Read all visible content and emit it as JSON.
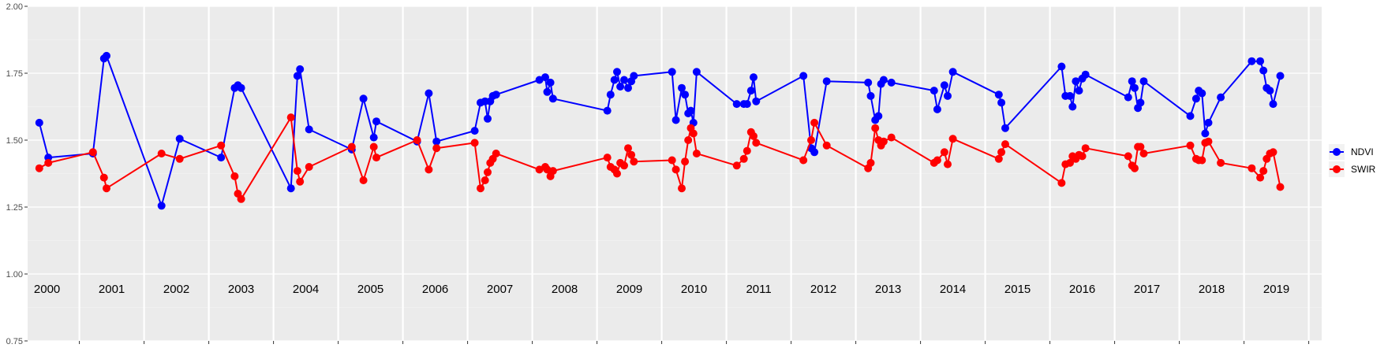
{
  "chart_data": {
    "type": "line",
    "ylim": [
      0.75,
      2.0
    ],
    "xlim": [
      1999.85,
      2019.85
    ],
    "y_ticks": [
      "0.75",
      "1.00",
      "1.25",
      "1.50",
      "1.75",
      "2.00"
    ],
    "y_tick_values": [
      0.75,
      1.0,
      1.25,
      1.5,
      1.75,
      2.0
    ],
    "year_labels": [
      "2000",
      "2001",
      "2002",
      "2003",
      "2004",
      "2005",
      "2006",
      "2007",
      "2008",
      "2009",
      "2010",
      "2011",
      "2012",
      "2013",
      "2014",
      "2015",
      "2016",
      "2017",
      "2018",
      "2019"
    ],
    "grid": true,
    "legend_position": "right",
    "series": [
      {
        "name": "NDVI",
        "color": "#0000ff",
        "points": [
          [
            2000.03,
            1.565
          ],
          [
            2000.17,
            1.435
          ],
          [
            2000.86,
            1.45
          ],
          [
            2001.03,
            1.805
          ],
          [
            2001.07,
            1.815
          ],
          [
            2001.92,
            1.255
          ],
          [
            2002.2,
            1.505
          ],
          [
            2002.84,
            1.435
          ],
          [
            2003.05,
            1.695
          ],
          [
            2003.1,
            1.705
          ],
          [
            2003.15,
            1.695
          ],
          [
            2003.92,
            1.32
          ],
          [
            2004.02,
            1.74
          ],
          [
            2004.06,
            1.765
          ],
          [
            2004.2,
            1.54
          ],
          [
            2004.86,
            1.465
          ],
          [
            2005.04,
            1.655
          ],
          [
            2005.2,
            1.51
          ],
          [
            2005.24,
            1.57
          ],
          [
            2005.87,
            1.495
          ],
          [
            2006.05,
            1.675
          ],
          [
            2006.17,
            1.495
          ],
          [
            2006.76,
            1.535
          ],
          [
            2006.85,
            1.64
          ],
          [
            2006.92,
            1.645
          ],
          [
            2006.96,
            1.58
          ],
          [
            2007.0,
            1.645
          ],
          [
            2007.04,
            1.665
          ],
          [
            2007.09,
            1.67
          ],
          [
            2007.76,
            1.725
          ],
          [
            2007.85,
            1.735
          ],
          [
            2007.88,
            1.68
          ],
          [
            2007.93,
            1.715
          ],
          [
            2007.97,
            1.655
          ],
          [
            2008.81,
            1.61
          ],
          [
            2008.86,
            1.67
          ],
          [
            2008.92,
            1.725
          ],
          [
            2008.96,
            1.755
          ],
          [
            2009.01,
            1.7
          ],
          [
            2009.07,
            1.725
          ],
          [
            2009.13,
            1.695
          ],
          [
            2009.18,
            1.72
          ],
          [
            2009.22,
            1.74
          ],
          [
            2009.81,
            1.755
          ],
          [
            2009.87,
            1.575
          ],
          [
            2009.96,
            1.695
          ],
          [
            2010.01,
            1.67
          ],
          [
            2010.06,
            1.6
          ],
          [
            2010.1,
            1.61
          ],
          [
            2010.14,
            1.565
          ],
          [
            2010.19,
            1.755
          ],
          [
            2010.81,
            1.635
          ],
          [
            2010.92,
            1.635
          ],
          [
            2010.97,
            1.635
          ],
          [
            2011.03,
            1.685
          ],
          [
            2011.07,
            1.735
          ],
          [
            2011.11,
            1.645
          ],
          [
            2011.84,
            1.74
          ],
          [
            2011.96,
            1.47
          ],
          [
            2012.01,
            1.455
          ],
          [
            2012.2,
            1.72
          ],
          [
            2012.84,
            1.715
          ],
          [
            2012.88,
            1.665
          ],
          [
            2012.95,
            1.575
          ],
          [
            2013.0,
            1.59
          ],
          [
            2013.04,
            1.71
          ],
          [
            2013.08,
            1.725
          ],
          [
            2013.2,
            1.715
          ],
          [
            2013.86,
            1.685
          ],
          [
            2013.91,
            1.615
          ],
          [
            2014.02,
            1.705
          ],
          [
            2014.07,
            1.665
          ],
          [
            2014.15,
            1.755
          ],
          [
            2014.86,
            1.67
          ],
          [
            2014.9,
            1.64
          ],
          [
            2014.96,
            1.545
          ],
          [
            2015.83,
            1.775
          ],
          [
            2015.89,
            1.665
          ],
          [
            2015.96,
            1.665
          ],
          [
            2016.0,
            1.625
          ],
          [
            2016.05,
            1.72
          ],
          [
            2016.1,
            1.685
          ],
          [
            2016.15,
            1.73
          ],
          [
            2016.2,
            1.745
          ],
          [
            2016.86,
            1.66
          ],
          [
            2016.92,
            1.72
          ],
          [
            2016.96,
            1.695
          ],
          [
            2017.01,
            1.62
          ],
          [
            2017.05,
            1.64
          ],
          [
            2017.1,
            1.72
          ],
          [
            2017.82,
            1.59
          ],
          [
            2017.91,
            1.655
          ],
          [
            2017.95,
            1.685
          ],
          [
            2018.0,
            1.675
          ],
          [
            2018.05,
            1.525
          ],
          [
            2018.1,
            1.565
          ],
          [
            2018.29,
            1.66
          ],
          [
            2018.77,
            1.795
          ],
          [
            2018.9,
            1.795
          ],
          [
            2018.95,
            1.76
          ],
          [
            2019.0,
            1.695
          ],
          [
            2019.05,
            1.685
          ],
          [
            2019.1,
            1.635
          ],
          [
            2019.21,
            1.74
          ]
        ]
      },
      {
        "name": "SWIR",
        "color": "#ff0000",
        "points": [
          [
            2000.03,
            1.395
          ],
          [
            2000.17,
            1.415
          ],
          [
            2000.86,
            1.455
          ],
          [
            2001.03,
            1.36
          ],
          [
            2001.07,
            1.32
          ],
          [
            2001.92,
            1.45
          ],
          [
            2002.2,
            1.43
          ],
          [
            2002.84,
            1.48
          ],
          [
            2003.05,
            1.365
          ],
          [
            2003.1,
            1.3
          ],
          [
            2003.15,
            1.28
          ],
          [
            2003.92,
            1.585
          ],
          [
            2004.02,
            1.385
          ],
          [
            2004.06,
            1.345
          ],
          [
            2004.2,
            1.4
          ],
          [
            2004.86,
            1.475
          ],
          [
            2005.04,
            1.35
          ],
          [
            2005.2,
            1.475
          ],
          [
            2005.24,
            1.435
          ],
          [
            2005.87,
            1.5
          ],
          [
            2006.05,
            1.39
          ],
          [
            2006.17,
            1.47
          ],
          [
            2006.76,
            1.49
          ],
          [
            2006.85,
            1.32
          ],
          [
            2006.92,
            1.35
          ],
          [
            2006.96,
            1.38
          ],
          [
            2007.0,
            1.415
          ],
          [
            2007.04,
            1.43
          ],
          [
            2007.09,
            1.45
          ],
          [
            2007.76,
            1.39
          ],
          [
            2007.85,
            1.4
          ],
          [
            2007.88,
            1.39
          ],
          [
            2007.93,
            1.365
          ],
          [
            2007.97,
            1.385
          ],
          [
            2008.81,
            1.435
          ],
          [
            2008.86,
            1.4
          ],
          [
            2008.92,
            1.39
          ],
          [
            2008.96,
            1.375
          ],
          [
            2009.01,
            1.415
          ],
          [
            2009.07,
            1.405
          ],
          [
            2009.13,
            1.47
          ],
          [
            2009.18,
            1.445
          ],
          [
            2009.22,
            1.42
          ],
          [
            2009.81,
            1.425
          ],
          [
            2009.87,
            1.39
          ],
          [
            2009.96,
            1.32
          ],
          [
            2010.01,
            1.42
          ],
          [
            2010.06,
            1.5
          ],
          [
            2010.1,
            1.545
          ],
          [
            2010.14,
            1.525
          ],
          [
            2010.19,
            1.45
          ],
          [
            2010.81,
            1.405
          ],
          [
            2010.92,
            1.43
          ],
          [
            2010.97,
            1.46
          ],
          [
            2011.03,
            1.53
          ],
          [
            2011.07,
            1.515
          ],
          [
            2011.11,
            1.49
          ],
          [
            2011.84,
            1.425
          ],
          [
            2011.96,
            1.5
          ],
          [
            2012.01,
            1.565
          ],
          [
            2012.2,
            1.48
          ],
          [
            2012.84,
            1.395
          ],
          [
            2012.88,
            1.415
          ],
          [
            2012.95,
            1.545
          ],
          [
            2013.0,
            1.5
          ],
          [
            2013.04,
            1.48
          ],
          [
            2013.08,
            1.495
          ],
          [
            2013.2,
            1.51
          ],
          [
            2013.86,
            1.415
          ],
          [
            2013.91,
            1.425
          ],
          [
            2014.02,
            1.455
          ],
          [
            2014.07,
            1.41
          ],
          [
            2014.15,
            1.505
          ],
          [
            2014.86,
            1.43
          ],
          [
            2014.9,
            1.455
          ],
          [
            2014.96,
            1.485
          ],
          [
            2015.83,
            1.34
          ],
          [
            2015.89,
            1.41
          ],
          [
            2015.96,
            1.415
          ],
          [
            2016.0,
            1.44
          ],
          [
            2016.05,
            1.43
          ],
          [
            2016.1,
            1.445
          ],
          [
            2016.15,
            1.44
          ],
          [
            2016.2,
            1.47
          ],
          [
            2016.86,
            1.44
          ],
          [
            2016.92,
            1.405
          ],
          [
            2016.96,
            1.395
          ],
          [
            2017.01,
            1.475
          ],
          [
            2017.05,
            1.475
          ],
          [
            2017.1,
            1.45
          ],
          [
            2017.82,
            1.48
          ],
          [
            2017.91,
            1.43
          ],
          [
            2017.95,
            1.425
          ],
          [
            2018.0,
            1.425
          ],
          [
            2018.05,
            1.49
          ],
          [
            2018.1,
            1.495
          ],
          [
            2018.29,
            1.415
          ],
          [
            2018.77,
            1.395
          ],
          [
            2018.9,
            1.36
          ],
          [
            2018.95,
            1.385
          ],
          [
            2019.0,
            1.43
          ],
          [
            2019.05,
            1.45
          ],
          [
            2019.1,
            1.455
          ],
          [
            2019.21,
            1.325
          ]
        ]
      }
    ]
  }
}
